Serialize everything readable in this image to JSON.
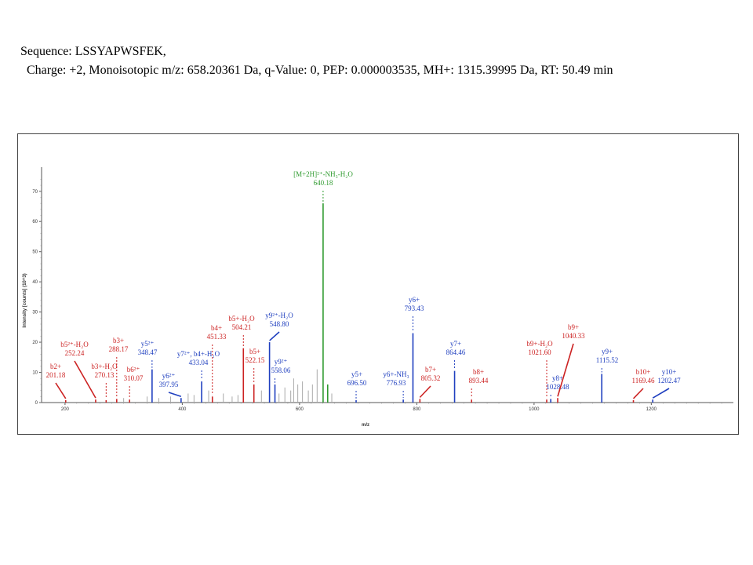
{
  "caption": {
    "sequence_line": "Sequence: LSSYAPWSFEK,",
    "details_line": "Charge: +2, Monoisotopic m/z: 658.20361 Da, q-Value: 0, PEP: 0.000003535, MH+: 1315.39995 Da, RT: 50.49 min"
  },
  "chart_data": {
    "type": "bar",
    "xlabel": "m/z",
    "ylabel": "Intensity [counts] (10^3)",
    "xlim": [
      160,
      1340
    ],
    "ylim": [
      0,
      78
    ],
    "x_ticks": [
      200,
      400,
      600,
      800,
      1000,
      1200
    ],
    "y_ticks": [
      0,
      10,
      20,
      30,
      40,
      50,
      60,
      70
    ],
    "colors": {
      "b_ion": "#cc2222",
      "y_ion": "#1f3fbf",
      "precursor": "#2e9a2e",
      "unassigned": "#aaaaaa"
    },
    "peaks": [
      {
        "mz": 201.18,
        "i": 0.8,
        "kind": "b_ion"
      },
      {
        "mz": 252.24,
        "i": 1.0,
        "kind": "b_ion"
      },
      {
        "mz": 270.13,
        "i": 0.8,
        "kind": "b_ion"
      },
      {
        "mz": 288.17,
        "i": 1.2,
        "kind": "b_ion"
      },
      {
        "mz": 310.07,
        "i": 1.0,
        "kind": "b_ion"
      },
      {
        "mz": 348.47,
        "i": 11,
        "kind": "y_ion"
      },
      {
        "mz": 397.95,
        "i": 1.5,
        "kind": "y_ion"
      },
      {
        "mz": 433.04,
        "i": 7,
        "kind": "y_ion"
      },
      {
        "mz": 451.33,
        "i": 2,
        "kind": "b_ion"
      },
      {
        "mz": 504.21,
        "i": 18,
        "kind": "b_ion"
      },
      {
        "mz": 522.15,
        "i": 6,
        "kind": "b_ion"
      },
      {
        "mz": 548.8,
        "i": 20,
        "kind": "y_ion"
      },
      {
        "mz": 558.06,
        "i": 6,
        "kind": "y_ion"
      },
      {
        "mz": 640.18,
        "i": 66,
        "kind": "precursor"
      },
      {
        "mz": 696.5,
        "i": 0.8,
        "kind": "y_ion"
      },
      {
        "mz": 776.93,
        "i": 1,
        "kind": "y_ion"
      },
      {
        "mz": 793.43,
        "i": 23,
        "kind": "y_ion"
      },
      {
        "mz": 805.32,
        "i": 1.2,
        "kind": "b_ion"
      },
      {
        "mz": 864.46,
        "i": 10.5,
        "kind": "y_ion"
      },
      {
        "mz": 893.44,
        "i": 1,
        "kind": "b_ion"
      },
      {
        "mz": 1021.6,
        "i": 1,
        "kind": "b_ion"
      },
      {
        "mz": 1028.48,
        "i": 1.2,
        "kind": "y_ion"
      },
      {
        "mz": 1040.33,
        "i": 1.5,
        "kind": "b_ion"
      },
      {
        "mz": 1115.52,
        "i": 9.5,
        "kind": "y_ion"
      },
      {
        "mz": 1169.46,
        "i": 0.8,
        "kind": "b_ion"
      },
      {
        "mz": 1202.47,
        "i": 1,
        "kind": "y_ion"
      },
      {
        "mz": 300,
        "i": 1.5,
        "kind": "unassigned"
      },
      {
        "mz": 340,
        "i": 2,
        "kind": "unassigned"
      },
      {
        "mz": 360,
        "i": 1.5,
        "kind": "unassigned"
      },
      {
        "mz": 380,
        "i": 2,
        "kind": "unassigned"
      },
      {
        "mz": 410,
        "i": 3,
        "kind": "unassigned"
      },
      {
        "mz": 420,
        "i": 2.5,
        "kind": "unassigned"
      },
      {
        "mz": 445,
        "i": 4,
        "kind": "unassigned"
      },
      {
        "mz": 470,
        "i": 3,
        "kind": "unassigned"
      },
      {
        "mz": 485,
        "i": 2,
        "kind": "unassigned"
      },
      {
        "mz": 495,
        "i": 2.5,
        "kind": "unassigned"
      },
      {
        "mz": 535,
        "i": 4,
        "kind": "unassigned"
      },
      {
        "mz": 565,
        "i": 3,
        "kind": "unassigned"
      },
      {
        "mz": 575,
        "i": 5,
        "kind": "unassigned"
      },
      {
        "mz": 585,
        "i": 4,
        "kind": "unassigned"
      },
      {
        "mz": 590,
        "i": 8,
        "kind": "unassigned"
      },
      {
        "mz": 597,
        "i": 6,
        "kind": "unassigned"
      },
      {
        "mz": 605,
        "i": 7,
        "kind": "unassigned"
      },
      {
        "mz": 615,
        "i": 4,
        "kind": "unassigned"
      },
      {
        "mz": 622,
        "i": 6,
        "kind": "unassigned"
      },
      {
        "mz": 630,
        "i": 11,
        "kind": "unassigned"
      },
      {
        "mz": 648,
        "i": 6,
        "kind": "precursor"
      },
      {
        "mz": 655,
        "i": 3,
        "kind": "unassigned"
      }
    ],
    "annotations": [
      {
        "name": "b2+",
        "mz_label": "201.18",
        "mz": 201.18,
        "kind": "b_ion"
      },
      {
        "name": "b5²⁺-H₂O",
        "mz_label": "252.24",
        "mz": 252.24,
        "kind": "b_ion"
      },
      {
        "name": "b3+-H₂O",
        "mz_label": "270.13",
        "mz": 270.13,
        "kind": "b_ion"
      },
      {
        "name": "b3+",
        "mz_label": "288.17",
        "mz": 288.17,
        "kind": "b_ion"
      },
      {
        "name": "b6²⁺",
        "mz_label": "310.07",
        "mz": 310.07,
        "kind": "b_ion"
      },
      {
        "name": "y5²⁺",
        "mz_label": "348.47",
        "mz": 348.47,
        "kind": "y_ion"
      },
      {
        "name": "y6²⁺",
        "mz_label": "397.95",
        "mz": 397.95,
        "kind": "y_ion"
      },
      {
        "name": "y7²⁺, b4+-H₂O",
        "mz_label": "433.04",
        "mz": 433.04,
        "kind": "y_ion"
      },
      {
        "name": "b4+",
        "mz_label": "451.33",
        "mz": 451.33,
        "kind": "b_ion"
      },
      {
        "name": "b5+-H₂O",
        "mz_label": "504.21",
        "mz": 504.21,
        "kind": "b_ion"
      },
      {
        "name": "b5+",
        "mz_label": "522.15",
        "mz": 522.15,
        "kind": "b_ion"
      },
      {
        "name": "y9²⁺-H₂O",
        "mz_label": "548.80",
        "mz": 548.8,
        "kind": "y_ion"
      },
      {
        "name": "y9²⁺",
        "mz_label": "558.06",
        "mz": 558.06,
        "kind": "y_ion"
      },
      {
        "name": "[M+2H]²⁺-NH₃-H₂O",
        "mz_label": "640.18",
        "mz": 640.18,
        "kind": "precursor"
      },
      {
        "name": "y5+",
        "mz_label": "696.50",
        "mz": 696.5,
        "kind": "y_ion"
      },
      {
        "name": "y6+-NH₃",
        "mz_label": "776.93",
        "mz": 776.93,
        "kind": "y_ion"
      },
      {
        "name": "y6+",
        "mz_label": "793.43",
        "mz": 793.43,
        "kind": "y_ion"
      },
      {
        "name": "b7+",
        "mz_label": "805.32",
        "mz": 805.32,
        "kind": "b_ion"
      },
      {
        "name": "y7+",
        "mz_label": "864.46",
        "mz": 864.46,
        "kind": "y_ion"
      },
      {
        "name": "b8+",
        "mz_label": "893.44",
        "mz": 893.44,
        "kind": "b_ion"
      },
      {
        "name": "b9+-H₂O",
        "mz_label": "1021.60",
        "mz": 1021.6,
        "kind": "b_ion"
      },
      {
        "name": "y8+",
        "mz_label": "1028.48",
        "mz": 1028.48,
        "kind": "y_ion"
      },
      {
        "name": "b9+",
        "mz_label": "1040.33",
        "mz": 1040.33,
        "kind": "b_ion"
      },
      {
        "name": "y9+",
        "mz_label": "1115.52",
        "mz": 1115.52,
        "kind": "y_ion"
      },
      {
        "name": "b10+",
        "mz_label": "1169.46",
        "mz": 1169.46,
        "kind": "b_ion"
      },
      {
        "name": "y10+",
        "mz_label": "1202.47",
        "mz": 1202.47,
        "kind": "y_ion"
      }
    ]
  }
}
